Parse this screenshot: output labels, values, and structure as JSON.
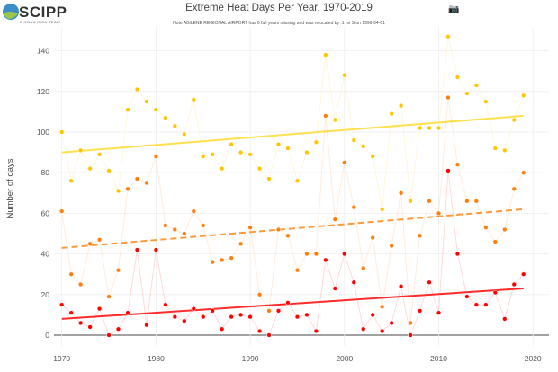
{
  "logo": {
    "text": "SCIPP",
    "subtitle": "A NOAA RISA TEAM"
  },
  "toolbar": {
    "camera_icon": "camera-icon"
  },
  "chart_data": {
    "type": "line",
    "title": "Extreme Heat Days Per Year, 1970-2019",
    "subtitle": "Note ABILENE REGIONAL AIRPORT has 0 full years missing and was relocated by .1 mi S on 1996-04-01",
    "xlabel": "",
    "ylabel": "Number of days",
    "xlim": [
      1967,
      2022
    ],
    "ylim": [
      -3,
      152
    ],
    "xticks": [
      1970,
      1980,
      1990,
      2000,
      2010,
      2020
    ],
    "yticks": [
      0,
      20,
      40,
      60,
      80,
      100,
      120,
      140
    ],
    "grid": true,
    "x_start": 1970,
    "series": [
      {
        "color": "#ffc600",
        "trend_color": "#ffe04d",
        "trend_style": "solid",
        "trend": [
          90,
          108
        ],
        "values": [
          100,
          76,
          91,
          82,
          89,
          81,
          71,
          111,
          121,
          115,
          111,
          107,
          103,
          99,
          116,
          88,
          89,
          82,
          94,
          90,
          89,
          82,
          77,
          94,
          92,
          76,
          90,
          95,
          138,
          106,
          128,
          96,
          93,
          88,
          62,
          109,
          113,
          66,
          102,
          102,
          102,
          147,
          127,
          119,
          123,
          115,
          92,
          91,
          106,
          118
        ]
      },
      {
        "color": "#ff7f0e",
        "trend_color": "#ff9a3c",
        "trend_style": "dashed",
        "trend": [
          43,
          62
        ],
        "values": [
          61,
          30,
          25,
          45,
          47,
          19,
          32,
          72,
          77,
          75,
          88,
          54,
          52,
          50,
          61,
          54,
          36,
          37,
          38,
          45,
          53,
          20,
          12,
          52,
          49,
          32,
          40,
          40,
          108,
          57,
          85,
          63,
          33,
          48,
          14,
          44,
          70,
          6,
          49,
          66,
          60,
          117,
          84,
          66,
          66,
          53,
          46,
          52,
          72,
          80
        ]
      },
      {
        "color": "#ff0000",
        "trend_color": "#ff2a2a",
        "trend_style": "solid",
        "trend": [
          8,
          23
        ],
        "values": [
          15,
          11,
          6,
          4,
          13,
          0,
          3,
          11,
          42,
          5,
          42,
          15,
          9,
          7,
          13,
          9,
          12,
          3,
          9,
          10,
          9,
          2,
          0,
          12,
          16,
          9,
          10,
          2,
          37,
          23,
          40,
          26,
          3,
          10,
          2,
          6,
          24,
          0,
          12,
          26,
          11,
          81,
          40,
          19,
          15,
          15,
          21,
          8,
          25,
          30
        ]
      }
    ]
  }
}
